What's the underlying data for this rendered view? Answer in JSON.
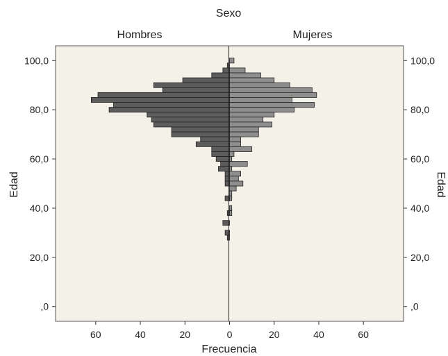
{
  "chart_data": {
    "type": "bar",
    "orientation": "horizontal",
    "layout": "population-pyramid",
    "title": "Sexo",
    "panels": [
      "Hombres",
      "Mujeres"
    ],
    "xlabel": "Frecuencia",
    "ylabel_left": "Edad",
    "ylabel_right": "Edad",
    "x_ticks": [
      "60",
      "40",
      "20",
      "0",
      "20",
      "40",
      "60"
    ],
    "y_ticks": [
      ",0",
      "20,0",
      "40,0",
      "60,0",
      "80,0",
      "100,0"
    ],
    "xlim": [
      -78,
      78
    ],
    "ylim": [
      -6,
      106
    ],
    "bin_width": 2,
    "colors": {
      "hombres": "#5c5c5c",
      "mujeres": "#8e8e8e",
      "background": "#f4f1e9",
      "edge": "#222222"
    },
    "series": [
      {
        "name": "Hombres",
        "bins": [
          {
            "age": 100,
            "count": 0
          },
          {
            "age": 98,
            "count": 1
          },
          {
            "age": 96,
            "count": 3
          },
          {
            "age": 94,
            "count": 8
          },
          {
            "age": 92,
            "count": 21
          },
          {
            "age": 90,
            "count": 34
          },
          {
            "age": 88,
            "count": 30
          },
          {
            "age": 86,
            "count": 59
          },
          {
            "age": 84,
            "count": 62
          },
          {
            "age": 82,
            "count": 52
          },
          {
            "age": 80,
            "count": 54
          },
          {
            "age": 78,
            "count": 37
          },
          {
            "age": 76,
            "count": 35
          },
          {
            "age": 74,
            "count": 34
          },
          {
            "age": 72,
            "count": 26
          },
          {
            "age": 70,
            "count": 26
          },
          {
            "age": 68,
            "count": 13
          },
          {
            "age": 66,
            "count": 15
          },
          {
            "age": 64,
            "count": 8
          },
          {
            "age": 62,
            "count": 8
          },
          {
            "age": 60,
            "count": 6
          },
          {
            "age": 58,
            "count": 4
          },
          {
            "age": 56,
            "count": 5
          },
          {
            "age": 54,
            "count": 2
          },
          {
            "age": 52,
            "count": 2
          },
          {
            "age": 50,
            "count": 2
          },
          {
            "age": 48,
            "count": 0
          },
          {
            "age": 46,
            "count": 0
          },
          {
            "age": 44,
            "count": 2
          },
          {
            "age": 42,
            "count": 0
          },
          {
            "age": 40,
            "count": 0
          },
          {
            "age": 38,
            "count": 1
          },
          {
            "age": 36,
            "count": 0
          },
          {
            "age": 34,
            "count": 3
          },
          {
            "age": 32,
            "count": 0
          },
          {
            "age": 30,
            "count": 2
          },
          {
            "age": 28,
            "count": 1
          }
        ]
      },
      {
        "name": "Mujeres",
        "bins": [
          {
            "age": 100,
            "count": 2
          },
          {
            "age": 98,
            "count": 0
          },
          {
            "age": 96,
            "count": 7
          },
          {
            "age": 94,
            "count": 14
          },
          {
            "age": 92,
            "count": 20
          },
          {
            "age": 90,
            "count": 27
          },
          {
            "age": 88,
            "count": 37
          },
          {
            "age": 86,
            "count": 39
          },
          {
            "age": 84,
            "count": 28
          },
          {
            "age": 82,
            "count": 38
          },
          {
            "age": 80,
            "count": 29
          },
          {
            "age": 78,
            "count": 20
          },
          {
            "age": 76,
            "count": 15
          },
          {
            "age": 74,
            "count": 19
          },
          {
            "age": 72,
            "count": 13
          },
          {
            "age": 70,
            "count": 13
          },
          {
            "age": 68,
            "count": 5
          },
          {
            "age": 66,
            "count": 5
          },
          {
            "age": 64,
            "count": 10
          },
          {
            "age": 62,
            "count": 2
          },
          {
            "age": 60,
            "count": 1
          },
          {
            "age": 58,
            "count": 8
          },
          {
            "age": 56,
            "count": 1
          },
          {
            "age": 54,
            "count": 5
          },
          {
            "age": 52,
            "count": 4
          },
          {
            "age": 50,
            "count": 6
          },
          {
            "age": 48,
            "count": 3
          },
          {
            "age": 46,
            "count": 1
          },
          {
            "age": 44,
            "count": 1
          },
          {
            "age": 42,
            "count": 0
          },
          {
            "age": 40,
            "count": 1
          },
          {
            "age": 38,
            "count": 1
          },
          {
            "age": 36,
            "count": 0
          },
          {
            "age": 34,
            "count": 0
          },
          {
            "age": 32,
            "count": 0
          },
          {
            "age": 30,
            "count": 0
          },
          {
            "age": 28,
            "count": 0
          }
        ]
      }
    ]
  }
}
